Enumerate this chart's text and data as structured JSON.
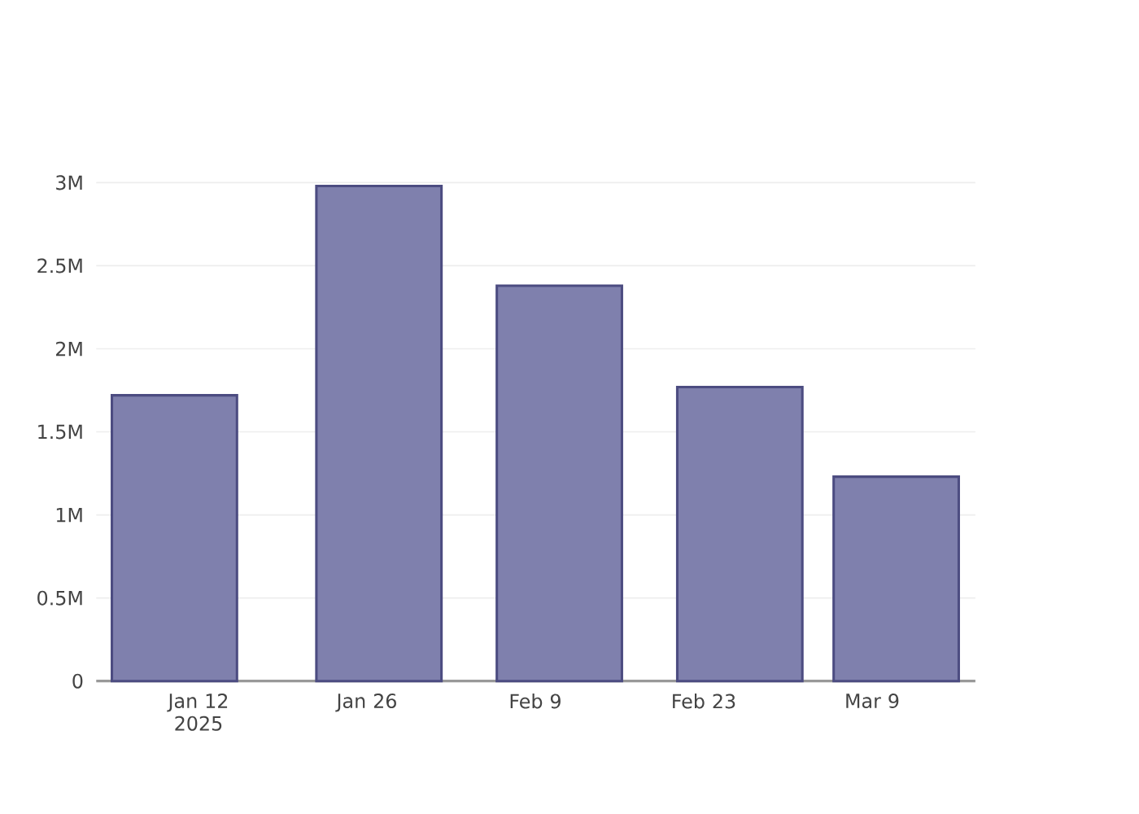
{
  "chart_data": {
    "type": "bar",
    "x": [
      "2025-01-10",
      "2025-01-27",
      "2025-02-11",
      "2025-02-26",
      "2025-03-11"
    ],
    "values": [
      1720000,
      2980000,
      2380000,
      1770000,
      1230000
    ],
    "color": "#7f80ad",
    "xlim": [
      "2025-01-03T12:00",
      "2025-03-17T14:00"
    ],
    "xticks": [
      {
        "value": "2025-01-12",
        "label": "Jan 12 2025"
      },
      {
        "value": "2025-01-26",
        "label": "Jan 26"
      },
      {
        "value": "2025-02-09",
        "label": "Feb 9"
      },
      {
        "value": "2025-02-23",
        "label": "Feb 23"
      },
      {
        "value": "2025-03-09",
        "label": "Mar 9"
      }
    ],
    "ylim": [
      0,
      3000000
    ],
    "yticks": [
      {
        "value": 0,
        "label": "0"
      },
      {
        "value": 500000,
        "label": "0.5M"
      },
      {
        "value": 1000000,
        "label": "1M"
      },
      {
        "value": 1500000,
        "label": "1.5M"
      },
      {
        "value": 2000000,
        "label": "2M"
      },
      {
        "value": 2500000,
        "label": "2.5M"
      },
      {
        "value": 3000000,
        "label": "3M"
      }
    ],
    "grid": "y"
  }
}
